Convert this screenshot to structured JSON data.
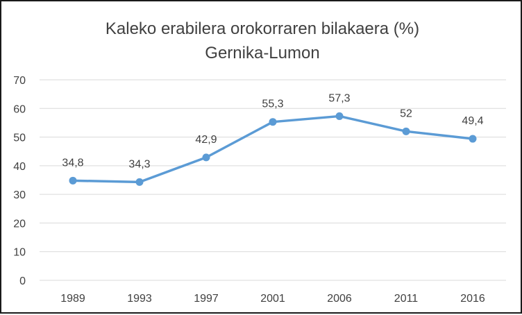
{
  "chart_data": {
    "type": "line",
    "title_lines": [
      "Kaleko erabilera orokorraren bilakaera (%)",
      "Gernika-Lumon"
    ],
    "xlabel": "",
    "ylabel": "",
    "categories": [
      "1989",
      "1993",
      "1997",
      "2001",
      "2006",
      "2011",
      "2016"
    ],
    "series": [
      {
        "values": [
          34.8,
          34.3,
          42.9,
          55.3,
          57.3,
          52,
          49.4
        ],
        "data_labels": [
          "34,8",
          "34,3",
          "42,9",
          "55,3",
          "57,3",
          "52",
          "49,4"
        ]
      }
    ],
    "ylim": [
      0,
      70
    ],
    "yticks": [
      0,
      10,
      20,
      30,
      40,
      50,
      60,
      70
    ],
    "grid": true,
    "legend": "none",
    "colors": {
      "line": "#5B9BD5",
      "grid": "#D9D9D9",
      "text": "#404040",
      "border": "#1A1A1A"
    }
  }
}
